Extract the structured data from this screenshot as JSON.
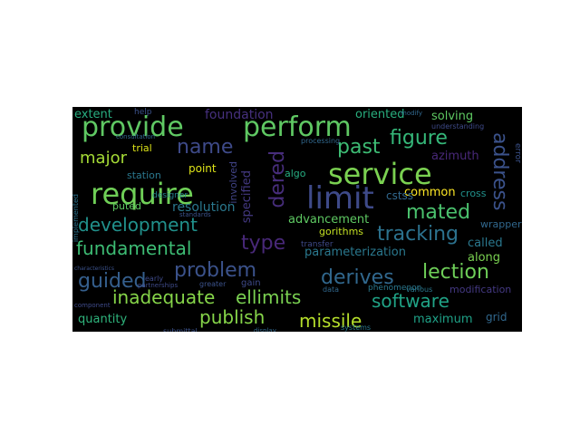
{
  "words": [
    {
      "text": "provide",
      "color": "#5fc863"
    },
    {
      "text": "perform",
      "color": "#5fc863"
    },
    {
      "text": "require",
      "color": "#6fcf57"
    },
    {
      "text": "service",
      "color": "#7ad151"
    },
    {
      "text": "limit",
      "color": "#3e4a89"
    },
    {
      "text": "address",
      "color": "#3b528b"
    },
    {
      "text": "figure",
      "color": "#35b779"
    },
    {
      "text": "name",
      "color": "#3e4a89"
    },
    {
      "text": "past",
      "color": "#3dbc74"
    },
    {
      "text": "major",
      "color": "#a5db36"
    },
    {
      "text": "dered",
      "color": "#472d7b"
    },
    {
      "text": "development",
      "color": "#21918c"
    },
    {
      "text": "fundamental",
      "color": "#3dbc74"
    },
    {
      "text": "mated",
      "color": "#4ac16d"
    },
    {
      "text": "tracking",
      "color": "#2c728e"
    },
    {
      "text": "type",
      "color": "#482878"
    },
    {
      "text": "problem",
      "color": "#3b528b"
    },
    {
      "text": "guided",
      "color": "#355f8d"
    },
    {
      "text": "derives",
      "color": "#31688e"
    },
    {
      "text": "lection",
      "color": "#6ece58"
    },
    {
      "text": "inadequate",
      "color": "#86d549"
    },
    {
      "text": "ellimits",
      "color": "#7ad151"
    },
    {
      "text": "software",
      "color": "#20a386"
    },
    {
      "text": "publish",
      "color": "#86d549"
    },
    {
      "text": "missile",
      "color": "#b5de2b"
    },
    {
      "text": "extent",
      "color": "#28ae80"
    },
    {
      "text": "foundation",
      "color": "#46307e"
    },
    {
      "text": "oriented",
      "color": "#29af7f"
    },
    {
      "text": "solving",
      "color": "#5ec962"
    },
    {
      "text": "azimuth",
      "color": "#482878"
    },
    {
      "text": "trial",
      "color": "#dde318"
    },
    {
      "text": "point",
      "color": "#dde318"
    },
    {
      "text": "station",
      "color": "#2a788e"
    },
    {
      "text": "common",
      "color": "#fde725"
    },
    {
      "text": "cross",
      "color": "#21918c"
    },
    {
      "text": "resolution",
      "color": "#2a788e"
    },
    {
      "text": "specified",
      "color": "#443983"
    },
    {
      "text": "involved",
      "color": "#414487"
    },
    {
      "text": "advancement",
      "color": "#5ec962"
    },
    {
      "text": "parameterization",
      "color": "#2a788e"
    },
    {
      "text": "called",
      "color": "#2a788e"
    },
    {
      "text": "along",
      "color": "#7ad151"
    },
    {
      "text": "gorithms",
      "color": "#c2df23"
    },
    {
      "text": "algo",
      "color": "#26ad81"
    },
    {
      "text": "puted",
      "color": "#5ec962"
    },
    {
      "text": "cstss",
      "color": "#31688e"
    },
    {
      "text": "wrapper",
      "color": "#31688e"
    },
    {
      "text": "transfer",
      "color": "#3e4a89"
    },
    {
      "text": "quantity",
      "color": "#2fb47c"
    },
    {
      "text": "maximum",
      "color": "#1fa187"
    },
    {
      "text": "grid",
      "color": "#31688e"
    },
    {
      "text": "gain",
      "color": "#3e4a89"
    },
    {
      "text": "modification",
      "color": "#443983"
    },
    {
      "text": "phenomenon",
      "color": "#2a788e"
    },
    {
      "text": "processing",
      "color": "#31688e"
    },
    {
      "text": "designer",
      "color": "#26828e"
    },
    {
      "text": "help",
      "color": "#3b528b"
    },
    {
      "text": "greater",
      "color": "#3b528b"
    },
    {
      "text": "data",
      "color": "#31688e"
    },
    {
      "text": "understanding",
      "color": "#3e4a89"
    },
    {
      "text": "various",
      "color": "#2a788e"
    },
    {
      "text": "error",
      "color": "#3b528b"
    },
    {
      "text": "implemented",
      "color": "#2c728e"
    },
    {
      "text": "submittal",
      "color": "#3b528b"
    },
    {
      "text": "early",
      "color": "#3e4a89"
    },
    {
      "text": "systems",
      "color": "#2a788e"
    },
    {
      "text": "modify",
      "color": "#31688e"
    },
    {
      "text": "component",
      "color": "#3e4a89"
    },
    {
      "text": "display",
      "color": "#31688e"
    },
    {
      "text": "partnerships",
      "color": "#3e4a89"
    },
    {
      "text": "consultation",
      "color": "#31688e"
    },
    {
      "text": "standards",
      "color": "#3b528b"
    },
    {
      "text": "characteristics",
      "color": "#3b528b"
    }
  ]
}
